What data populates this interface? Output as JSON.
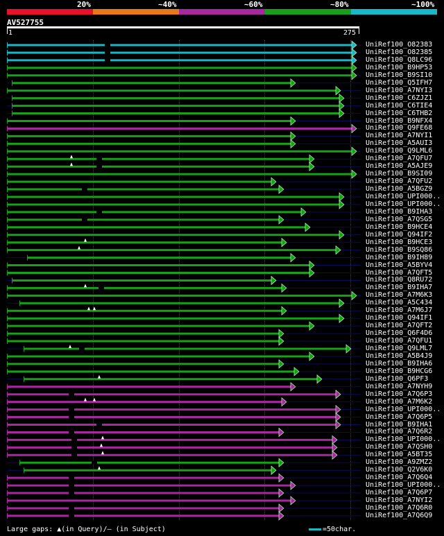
{
  "legend": {
    "labels": [
      "20%",
      "~40%",
      "~60%",
      "~80%",
      "~100%"
    ],
    "colors": [
      "#e8102a",
      "#e87818",
      "#a828a0",
      "#18a018",
      "#18b8c8"
    ]
  },
  "query": {
    "name": "AV527755",
    "start": "1",
    "end": "275"
  },
  "hits": [
    {
      "name": "UniRef100_O82383",
      "color": "#18b8c8",
      "s": 10,
      "e": 513,
      "m": [
        [
          155,
          "g"
        ]
      ]
    },
    {
      "name": "UniRef100_O82385",
      "color": "#18b8c8",
      "s": 10,
      "e": 513,
      "m": [
        [
          155,
          "g"
        ]
      ]
    },
    {
      "name": "UniRef100_Q8LC96",
      "color": "#18b8c8",
      "s": 10,
      "e": 513,
      "m": [
        [
          155,
          "g"
        ]
      ]
    },
    {
      "name": "UniRef100_B9HP53",
      "color": "#18a018",
      "s": 10,
      "e": 513
    },
    {
      "name": "UniRef100_B9SI10",
      "color": "#18a018",
      "s": 10,
      "e": 513
    },
    {
      "name": "UniRef100_Q5IFH7",
      "color": "#18a018",
      "s": 17,
      "e": 425
    },
    {
      "name": "UniRef100_A7NYI3",
      "color": "#18a018",
      "s": 10,
      "e": 490
    },
    {
      "name": "UniRef100_C6ZJZ1",
      "color": "#18a018",
      "s": 17,
      "e": 495
    },
    {
      "name": "UniRef100_C6TIE4",
      "color": "#18a018",
      "s": 17,
      "e": 495
    },
    {
      "name": "UniRef100_C6THB2",
      "color": "#18a018",
      "s": 17,
      "e": 495
    },
    {
      "name": "UniRef100_B9NFX4",
      "color": "#18a018",
      "s": 10,
      "e": 425
    },
    {
      "name": "UniRef100_Q9FE68",
      "color": "#a828a0",
      "s": 10,
      "e": 513
    },
    {
      "name": "UniRef100_A7NYI1",
      "color": "#18a018",
      "s": 10,
      "e": 425
    },
    {
      "name": "UniRef100_A5AUI3",
      "color": "#18a018",
      "s": 10,
      "e": 425
    },
    {
      "name": "UniRef100_Q9LML6",
      "color": "#18a018",
      "s": 10,
      "e": 513
    },
    {
      "name": "UniRef100_A7QFU7",
      "color": "#18a018",
      "s": 10,
      "e": 452,
      "m": [
        [
          103,
          "q"
        ],
        [
          143,
          "g"
        ]
      ]
    },
    {
      "name": "UniRef100_A5AJE9",
      "color": "#18a018",
      "s": 10,
      "e": 452,
      "m": [
        [
          103,
          "q"
        ],
        [
          143,
          "g"
        ]
      ]
    },
    {
      "name": "UniRef100_B9SI09",
      "color": "#18a018",
      "s": 10,
      "e": 513
    },
    {
      "name": "UniRef100_A7QFU2",
      "color": "#18a018",
      "s": 10,
      "e": 397
    },
    {
      "name": "UniRef100_A5BGZ9",
      "color": "#18a018",
      "s": 10,
      "e": 408,
      "m": [
        [
          122,
          "g"
        ]
      ]
    },
    {
      "name": "UniRef100_UPI000..",
      "color": "#18a018",
      "s": 10,
      "e": 495
    },
    {
      "name": "UniRef100_UPI000..",
      "color": "#18a018",
      "s": 10,
      "e": 495
    },
    {
      "name": "UniRef100_B9IHA3",
      "color": "#18a018",
      "s": 10,
      "e": 440,
      "m": [
        [
          143,
          "g"
        ]
      ]
    },
    {
      "name": "UniRef100_A7QSG5",
      "color": "#18a018",
      "s": 10,
      "e": 408,
      "m": [
        [
          122,
          "g"
        ]
      ]
    },
    {
      "name": "UniRef100_B9HCE4",
      "color": "#18a018",
      "s": 10,
      "e": 446
    },
    {
      "name": "UniRef100_Q94IF2",
      "color": "#18a018",
      "s": 10,
      "e": 495
    },
    {
      "name": "UniRef100_B9HCE3",
      "color": "#18a018",
      "s": 10,
      "e": 412,
      "m": [
        [
          123,
          "q"
        ]
      ]
    },
    {
      "name": "UniRef100_B9SQ86",
      "color": "#18a018",
      "s": 10,
      "e": 490,
      "m": [
        [
          114,
          "q"
        ]
      ]
    },
    {
      "name": "UniRef100_B9IH89",
      "color": "#18a018",
      "s": 39,
      "e": 425
    },
    {
      "name": "UniRef100_A5BYV4",
      "color": "#18a018",
      "s": 10,
      "e": 452
    },
    {
      "name": "UniRef100_A7QFT5",
      "color": "#18a018",
      "s": 10,
      "e": 452
    },
    {
      "name": "UniRef100_Q8RU72",
      "color": "#18a018",
      "s": 17,
      "e": 397
    },
    {
      "name": "UniRef100_B9IHA7",
      "color": "#18a018",
      "s": 10,
      "e": 412,
      "m": [
        [
          123,
          "q"
        ],
        [
          146,
          "g"
        ]
      ]
    },
    {
      "name": "UniRef100_A7M6K3",
      "color": "#18a018",
      "s": 10,
      "e": 513
    },
    {
      "name": "UniRef100_A5C434",
      "color": "#18a018",
      "s": 28,
      "e": 495
    },
    {
      "name": "UniRef100_A7M6J7",
      "color": "#18a018",
      "s": 10,
      "e": 412,
      "m": [
        [
          128,
          "q"
        ],
        [
          136,
          "q"
        ]
      ]
    },
    {
      "name": "UniRef100_Q94IF1",
      "color": "#18a018",
      "s": 10,
      "e": 495
    },
    {
      "name": "UniRef100_A7QFT2",
      "color": "#18a018",
      "s": 10,
      "e": 452
    },
    {
      "name": "UniRef100_Q6F4D6",
      "color": "#18a018",
      "s": 10,
      "e": 408
    },
    {
      "name": "UniRef100_A7QFU1",
      "color": "#18a018",
      "s": 10,
      "e": 408
    },
    {
      "name": "UniRef100_Q9LML7",
      "color": "#18a018",
      "s": 34,
      "e": 505,
      "m": [
        [
          101,
          "q"
        ],
        [
          118,
          "g"
        ]
      ]
    },
    {
      "name": "UniRef100_A5B4J9",
      "color": "#18a018",
      "s": 10,
      "e": 452
    },
    {
      "name": "UniRef100_B9IHA6",
      "color": "#18a018",
      "s": 10,
      "e": 408
    },
    {
      "name": "UniRef100_B9HCG6",
      "color": "#18a018",
      "s": 10,
      "e": 430
    },
    {
      "name": "UniRef100_Q6PF3",
      "color": "#18a018",
      "s": 34,
      "e": 463,
      "m": [
        [
          143,
          "q"
        ]
      ]
    },
    {
      "name": "UniRef100_A7NYH9",
      "color": "#a828a0",
      "s": 10,
      "e": 425
    },
    {
      "name": "UniRef100_A7Q6P3",
      "color": "#a828a0",
      "s": 10,
      "e": 490,
      "m": [
        [
          103,
          "g"
        ]
      ]
    },
    {
      "name": "UniRef100_A7M6K2",
      "color": "#a828a0",
      "s": 10,
      "e": 412,
      "m": [
        [
          123,
          "q"
        ],
        [
          136,
          "q"
        ]
      ]
    },
    {
      "name": "UniRef100_UPI000..",
      "color": "#a828a0",
      "s": 10,
      "e": 490,
      "m": [
        [
          103,
          "g"
        ]
      ]
    },
    {
      "name": "UniRef100_A7Q6P5",
      "color": "#a828a0",
      "s": 10,
      "e": 490,
      "m": [
        [
          103,
          "g"
        ]
      ]
    },
    {
      "name": "UniRef100_B9IHA1",
      "color": "#a828a0",
      "s": 10,
      "e": 490,
      "m": [
        [
          143,
          "g"
        ]
      ]
    },
    {
      "name": "UniRef100_A7Q6R2",
      "color": "#a828a0",
      "s": 10,
      "e": 408,
      "m": [
        [
          103,
          "g"
        ]
      ]
    },
    {
      "name": "UniRef100_UPI000..",
      "color": "#a828a0",
      "s": 10,
      "e": 485,
      "m": [
        [
          107,
          "g"
        ],
        [
          148,
          "q"
        ]
      ]
    },
    {
      "name": "UniRef100_A7QSH0",
      "color": "#a828a0",
      "s": 10,
      "e": 485,
      "m": [
        [
          107,
          "g"
        ],
        [
          146,
          "q"
        ]
      ]
    },
    {
      "name": "UniRef100_A5BT35",
      "color": "#a828a0",
      "s": 10,
      "e": 485,
      "m": [
        [
          107,
          "g"
        ],
        [
          148,
          "q"
        ]
      ]
    },
    {
      "name": "UniRef100_A9ZMZ2",
      "color": "#18a018",
      "s": 28,
      "e": 408,
      "m": [
        [
          136,
          "g"
        ]
      ]
    },
    {
      "name": "UniRef100_Q2V6K0",
      "color": "#18a018",
      "s": 34,
      "e": 397,
      "m": [
        [
          143,
          "q"
        ]
      ]
    },
    {
      "name": "UniRef100_A7Q6Q4",
      "color": "#a828a0",
      "s": 10,
      "e": 408,
      "m": [
        [
          103,
          "g"
        ]
      ]
    },
    {
      "name": "UniRef100_UPI000..",
      "color": "#a828a0",
      "s": 10,
      "e": 425,
      "m": [
        [
          103,
          "g"
        ]
      ]
    },
    {
      "name": "UniRef100_A7Q6P7",
      "color": "#a828a0",
      "s": 10,
      "e": 408,
      "m": [
        [
          103,
          "g"
        ]
      ]
    },
    {
      "name": "UniRef100_A7NYI2",
      "color": "#a828a0",
      "s": 10,
      "e": 425
    },
    {
      "name": "UniRef100_A7Q6R0",
      "color": "#a828a0",
      "s": 10,
      "e": 408,
      "m": [
        [
          103,
          "g"
        ]
      ]
    },
    {
      "name": "UniRef100_A7Q6Q9",
      "color": "#a828a0",
      "s": 10,
      "e": 408,
      "m": [
        [
          103,
          "g"
        ]
      ]
    }
  ],
  "footer": {
    "prefix": "Large gaps:",
    "query_symbol": "▲",
    "query_text": "(in Query)/",
    "subject_symbol": "–",
    "subject_text": " (in Subject)",
    "scale_text": "=50char."
  }
}
